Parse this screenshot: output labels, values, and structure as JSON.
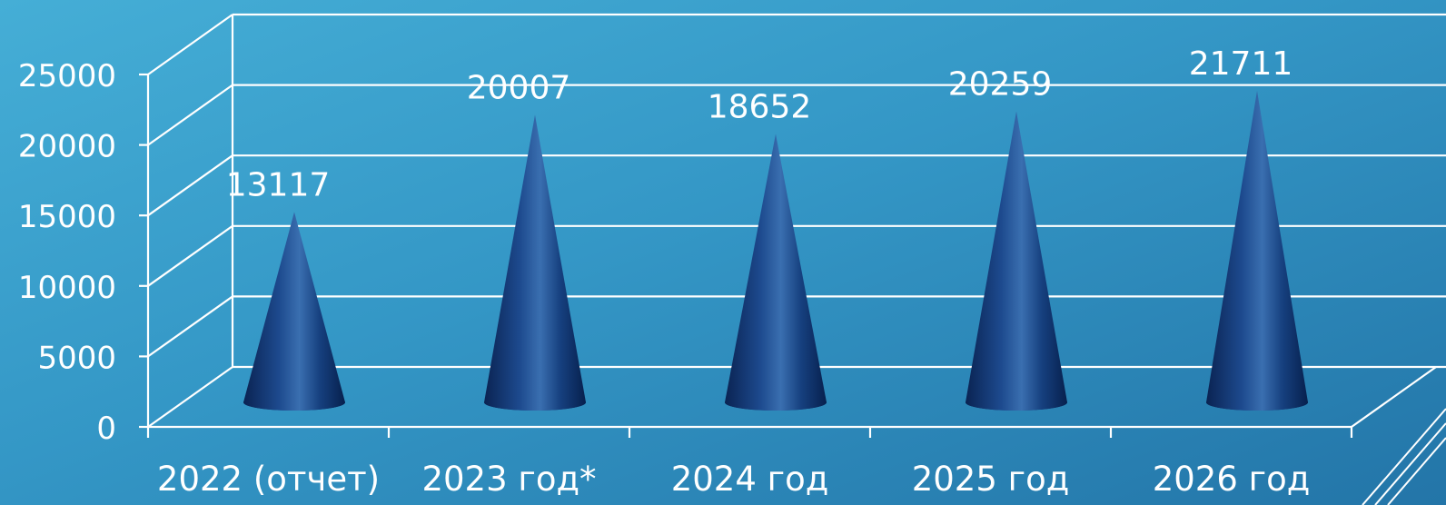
{
  "chart_data": {
    "type": "bar",
    "shape": "cone-3d",
    "categories": [
      "2022 (отчет)",
      "2023 год*",
      "2024 год",
      "2025 год",
      "2026 год"
    ],
    "values": [
      13117,
      20007,
      18652,
      20259,
      21711
    ],
    "data_labels": [
      "13117",
      "20007",
      "18652",
      "20259",
      "21711"
    ],
    "ylim": [
      0,
      25000
    ],
    "yticks": [
      0,
      5000,
      10000,
      15000,
      20000,
      25000
    ],
    "ytick_labels": [
      "0",
      "5000",
      "10000",
      "15000",
      "20000",
      "25000"
    ],
    "grid": true,
    "legend": "none",
    "title": "",
    "xlabel": "",
    "ylabel": ""
  },
  "colors": {
    "background_top": "#45aed6",
    "background_bottom": "#2375a8",
    "cone_dark": "#0c2a5e",
    "cone_light": "#3a6fb0",
    "text": "#ffffff"
  }
}
